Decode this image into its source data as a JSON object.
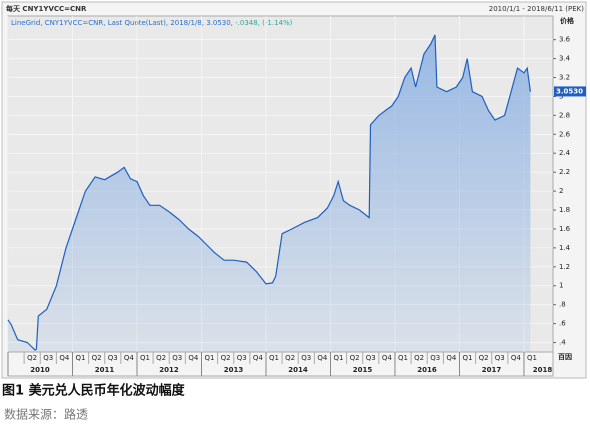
{
  "chart_data": {
    "type": "area",
    "header_left": "每天 CNY1YVCC=CNR",
    "header_right": "2010/1/1 - 2018/6/11 (PEK)",
    "legend_prefix": "LineGrid, CNY1YVCC=CNR, Last Quote(Last), 2018/1/8, 3.0530, ",
    "legend_change": "-.0348, (-1.14%)",
    "y_axis_label": "价格",
    "y_axis_bottom_label": "百因",
    "last_value": 3.053,
    "last_value_label": "3.0530",
    "caption": "图1 美元兑人民币年化波动幅度",
    "source": "数据来源：路透",
    "color": "#1f5fbf",
    "fill_color": "#8fb3e3",
    "grid": true,
    "xlim": [
      2010,
      2018.45
    ],
    "ylim": [
      0.3,
      3.85
    ],
    "yticks": [
      {
        "value": 0.4,
        "label": ".4"
      },
      {
        "value": 0.6,
        "label": ".6"
      },
      {
        "value": 0.8,
        "label": ".8"
      },
      1,
      1.2,
      1.4,
      1.6,
      1.8,
      2,
      2.2,
      2.4,
      2.6,
      2.8,
      3,
      3.2,
      3.4,
      3.6
    ],
    "xticks": [
      {
        "value": 2010.25,
        "label": "Q2"
      },
      {
        "value": 2010.5,
        "label": "Q3"
      },
      {
        "value": 2010.75,
        "label": "Q4"
      },
      {
        "value": 2011,
        "label": "Q1"
      },
      {
        "value": 2011.25,
        "label": "Q2"
      },
      {
        "value": 2011.5,
        "label": "Q3"
      },
      {
        "value": 2011.75,
        "label": "Q4"
      },
      {
        "value": 2012,
        "label": "Q1"
      },
      {
        "value": 2012.25,
        "label": "Q2"
      },
      {
        "value": 2012.5,
        "label": "Q3"
      },
      {
        "value": 2012.75,
        "label": "Q4"
      },
      {
        "value": 2013,
        "label": "Q1"
      },
      {
        "value": 2013.25,
        "label": "Q2"
      },
      {
        "value": 2013.5,
        "label": "Q3"
      },
      {
        "value": 2013.75,
        "label": "Q4"
      },
      {
        "value": 2014,
        "label": "Q1"
      },
      {
        "value": 2014.25,
        "label": "Q2"
      },
      {
        "value": 2014.5,
        "label": "Q3"
      },
      {
        "value": 2014.75,
        "label": "Q4"
      },
      {
        "value": 2015,
        "label": "Q1"
      },
      {
        "value": 2015.25,
        "label": "Q2"
      },
      {
        "value": 2015.5,
        "label": "Q3"
      },
      {
        "value": 2015.75,
        "label": "Q4"
      },
      {
        "value": 2016,
        "label": "Q1"
      },
      {
        "value": 2016.25,
        "label": "Q2"
      },
      {
        "value": 2016.5,
        "label": "Q3"
      },
      {
        "value": 2016.75,
        "label": "Q4"
      },
      {
        "value": 2017,
        "label": "Q1"
      },
      {
        "value": 2017.25,
        "label": "Q2"
      },
      {
        "value": 2017.5,
        "label": "Q3"
      },
      {
        "value": 2017.75,
        "label": "Q4"
      },
      {
        "value": 2018,
        "label": "Q1"
      }
    ],
    "year_ticks": [
      2010,
      2011,
      2012,
      2013,
      2014,
      2015,
      2016,
      2017,
      2018
    ],
    "x": [
      2010.0,
      2010.05,
      2010.15,
      2010.3,
      2010.42,
      2010.44,
      2010.47,
      2010.6,
      2010.75,
      2010.9,
      2011.05,
      2011.2,
      2011.35,
      2011.5,
      2011.7,
      2011.8,
      2011.9,
      2012.0,
      2012.1,
      2012.2,
      2012.35,
      2012.5,
      2012.65,
      2012.8,
      2012.95,
      2013.1,
      2013.2,
      2013.35,
      2013.5,
      2013.7,
      2013.85,
      2014.0,
      2014.1,
      2014.15,
      2014.25,
      2014.4,
      2014.6,
      2014.8,
      2014.95,
      2015.05,
      2015.12,
      2015.2,
      2015.3,
      2015.45,
      2015.6,
      2015.62,
      2015.75,
      2015.85,
      2015.95,
      2016.05,
      2016.15,
      2016.25,
      2016.32,
      2016.45,
      2016.55,
      2016.62,
      2016.65,
      2016.8,
      2016.95,
      2017.05,
      2017.12,
      2017.2,
      2017.35,
      2017.45,
      2017.55,
      2017.7,
      2017.8,
      2017.9,
      2018.0,
      2018.05,
      2018.1
    ],
    "values": [
      0.64,
      0.59,
      0.43,
      0.4,
      0.32,
      0.33,
      0.68,
      0.75,
      1.0,
      1.4,
      1.7,
      2.0,
      2.15,
      2.12,
      2.2,
      2.25,
      2.13,
      2.1,
      1.95,
      1.85,
      1.85,
      1.78,
      1.7,
      1.6,
      1.52,
      1.42,
      1.35,
      1.27,
      1.27,
      1.25,
      1.15,
      1.02,
      1.03,
      1.1,
      1.55,
      1.6,
      1.67,
      1.72,
      1.82,
      1.95,
      2.1,
      1.9,
      1.85,
      1.8,
      1.72,
      2.7,
      2.8,
      2.85,
      2.9,
      3.0,
      3.2,
      3.3,
      3.1,
      3.45,
      3.55,
      3.65,
      3.1,
      3.05,
      3.1,
      3.2,
      3.4,
      3.05,
      3.0,
      2.85,
      2.75,
      2.8,
      3.05,
      3.3,
      3.25,
      3.3,
      3.05
    ]
  }
}
